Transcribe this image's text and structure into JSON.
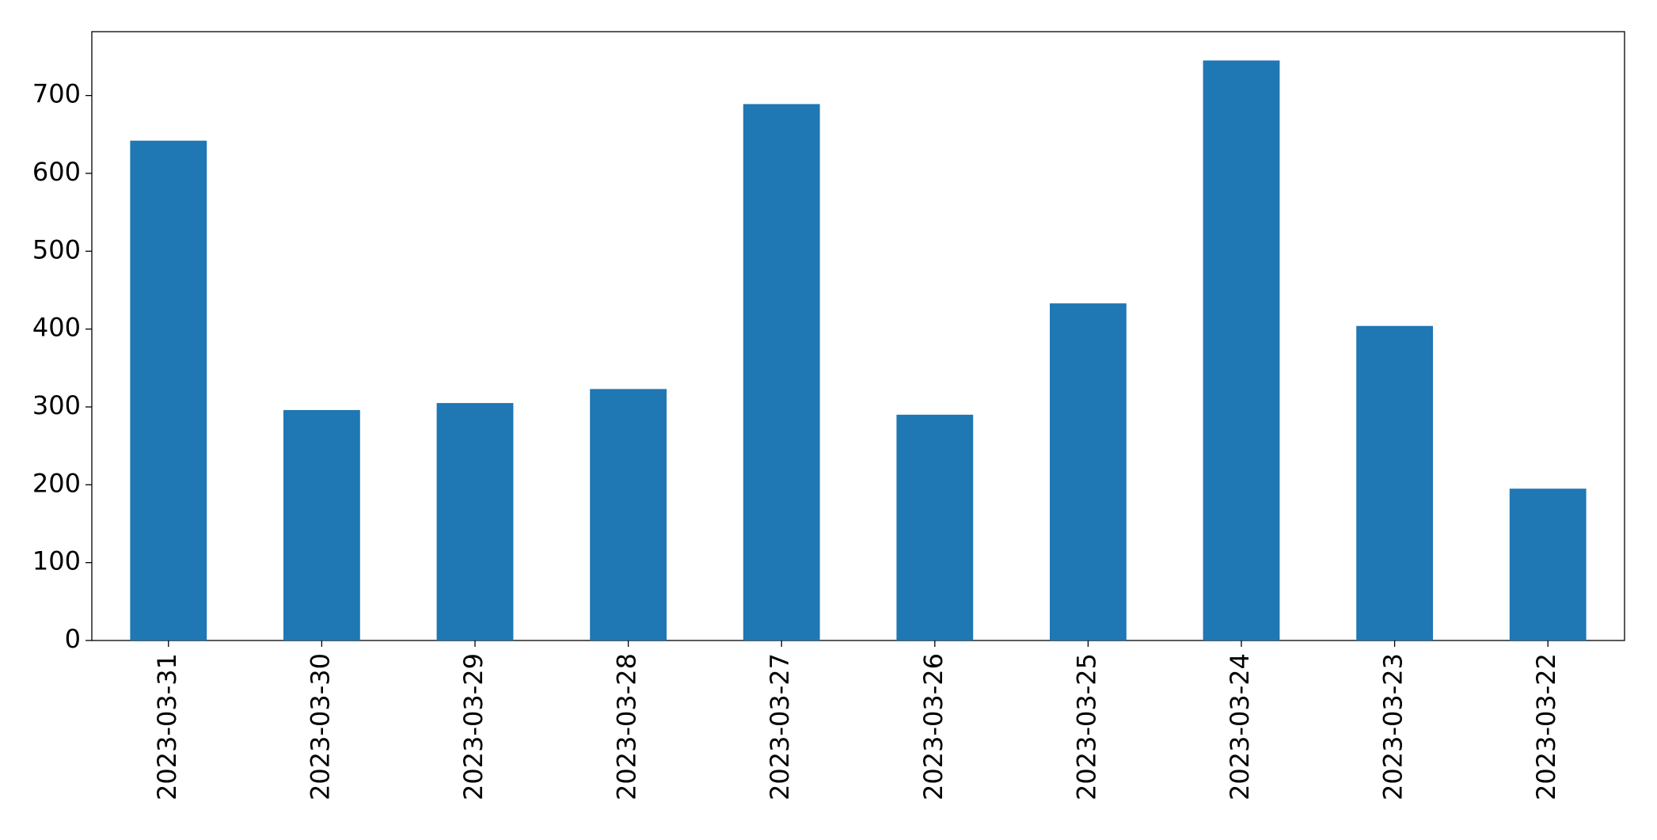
{
  "chart_data": {
    "type": "bar",
    "categories": [
      "2023-03-31",
      "2023-03-30",
      "2023-03-29",
      "2023-03-28",
      "2023-03-27",
      "2023-03-26",
      "2023-03-25",
      "2023-03-24",
      "2023-03-23",
      "2023-03-22"
    ],
    "values": [
      642,
      296,
      305,
      323,
      689,
      290,
      433,
      745,
      404,
      195
    ],
    "color": "#1f77b4",
    "ylim": [
      0,
      782
    ],
    "yticks": [
      0,
      100,
      200,
      300,
      400,
      500,
      600,
      700
    ],
    "grid": false
  }
}
